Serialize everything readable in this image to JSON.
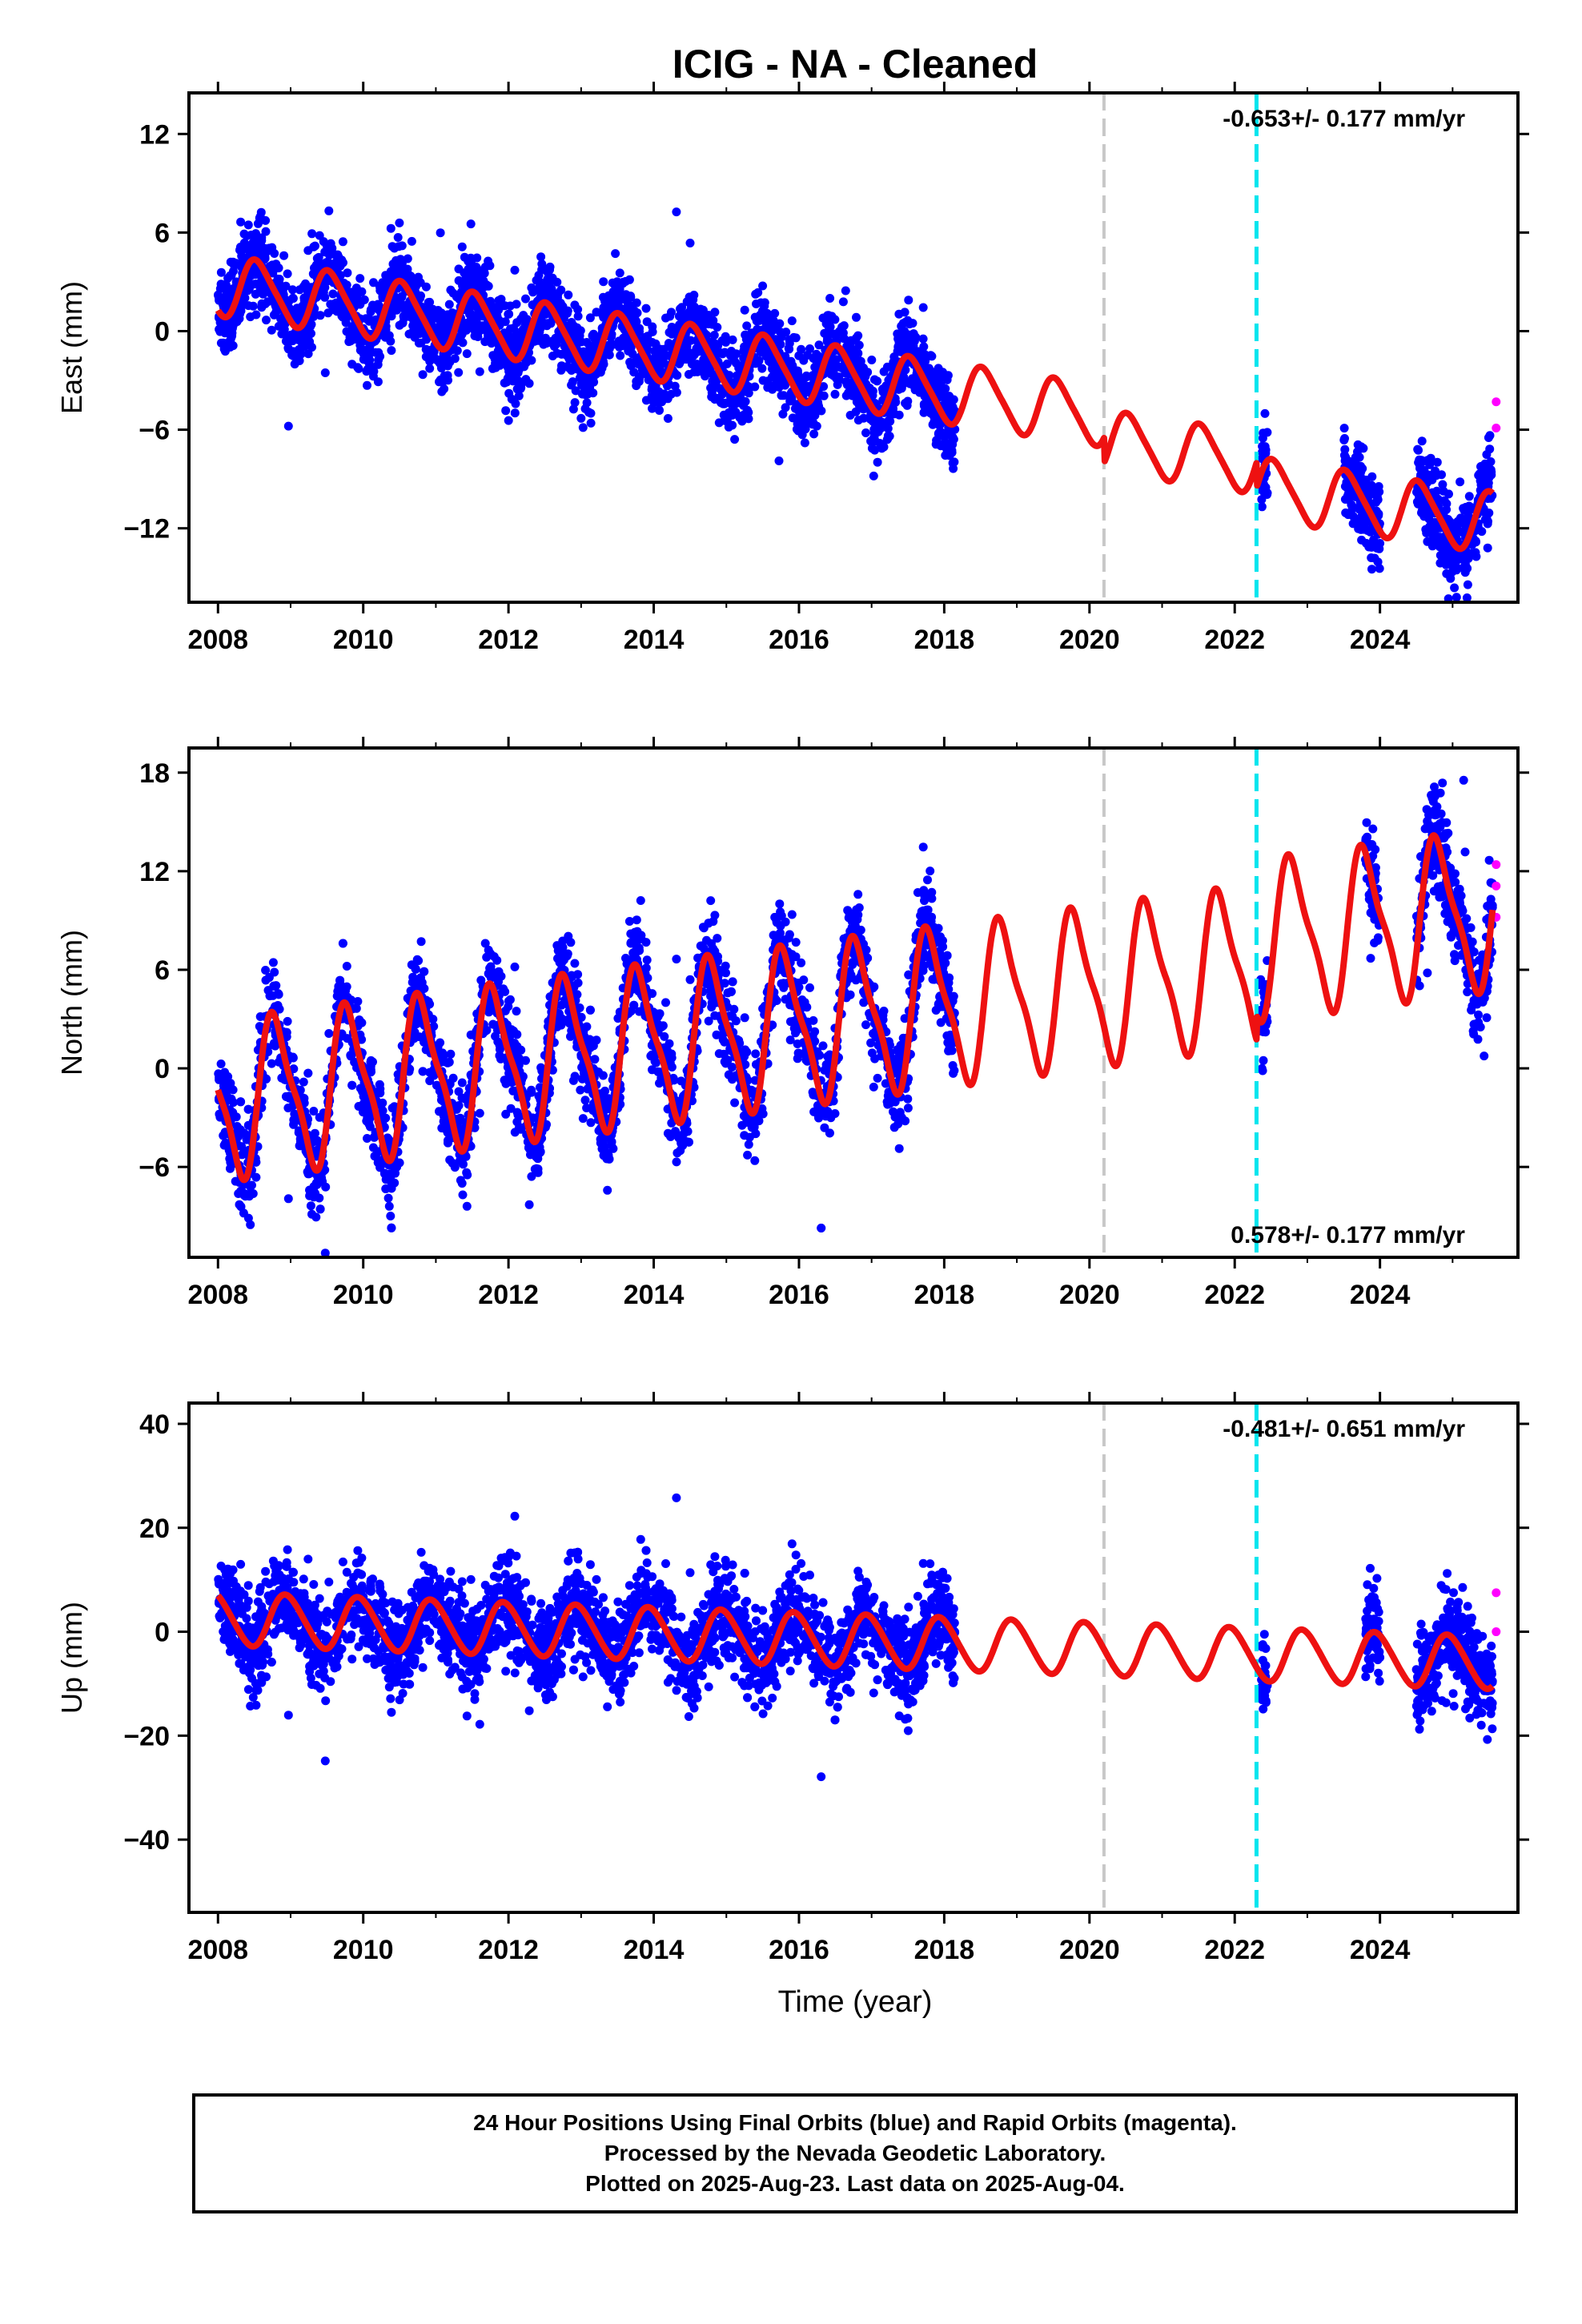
{
  "title": "ICIG  - NA - Cleaned",
  "xlabel": "Time (year)",
  "footer": {
    "lines": [
      "24 Hour Positions Using Final Orbits (blue) and Rapid Orbits (magenta).",
      "Processed by the Nevada Geodetic Laboratory.",
      "Plotted on 2025-Aug-23. Last data on 2025-Aug-04."
    ]
  },
  "colors": {
    "final_orbits": "#0000ff",
    "rapid_orbits": "#ff00ff",
    "model": "#ee1111",
    "event_gray": "#c8c8c8",
    "event_cyan": "#00e5ee"
  },
  "chart_data": [
    {
      "type": "scatter",
      "name": "east",
      "ylabel": "East (mm)",
      "rate_label": "-0.653+/- 0.177 mm/yr",
      "rate_position": "top-right",
      "xlim": [
        2007.6,
        2025.9
      ],
      "ylim": [
        -16.5,
        14.5
      ],
      "xticks": [
        2008,
        2010,
        2012,
        2014,
        2016,
        2018,
        2020,
        2022,
        2024
      ],
      "yticks": [
        12,
        6,
        0,
        -6,
        -12
      ],
      "ytick_labels": [
        "12",
        "6",
        "0",
        "−6",
        "−12"
      ],
      "event_lines": [
        {
          "x": 2020.2,
          "style": "gray-dashed"
        },
        {
          "x": 2022.3,
          "style": "cyan-dashed"
        }
      ],
      "model": {
        "rate": -0.653,
        "offset": 2.8,
        "annual_amp": 1.8,
        "phase": 0.3,
        "semiannual_amp": 0.3,
        "steps": [
          {
            "x": 2020.2,
            "dy": -1.5
          },
          {
            "x": 2022.3,
            "dy": -1.5
          }
        ],
        "x0": 2008.0,
        "y0_ref": 2008.0
      },
      "final_data": {
        "segments": [
          [
            2008.0,
            2018.15
          ],
          [
            2022.35,
            2022.45
          ],
          [
            2023.5,
            2024.0
          ],
          [
            2024.5,
            2025.55
          ]
        ],
        "noise": 1.3
      },
      "rapid_points": [
        [
          2025.6,
          -4.3
        ],
        [
          2025.6,
          -5.9
        ]
      ]
    },
    {
      "type": "scatter",
      "name": "north",
      "ylabel": "North (mm)",
      "rate_label": "0.578+/- 0.177 mm/yr",
      "rate_position": "bottom-right",
      "xlim": [
        2007.6,
        2025.9
      ],
      "ylim": [
        -11.5,
        19.5
      ],
      "xticks": [
        2008,
        2010,
        2012,
        2014,
        2016,
        2018,
        2020,
        2022,
        2024
      ],
      "yticks": [
        18,
        12,
        6,
        0,
        -6
      ],
      "ytick_labels": [
        "18",
        "12",
        "6",
        "0",
        "−6"
      ],
      "event_lines": [
        {
          "x": 2020.2,
          "style": "gray-dashed"
        },
        {
          "x": 2022.3,
          "style": "cyan-dashed"
        }
      ],
      "model": {
        "rate": 0.578,
        "offset": -2.0,
        "annual_amp": 4.5,
        "phase": 0.55,
        "semiannual_amp": 1.2,
        "steps": [
          {
            "x": 2022.3,
            "dy": 1.5
          }
        ],
        "x0": 2008.0,
        "y0_ref": 2008.0
      },
      "final_data": {
        "segments": [
          [
            2008.0,
            2018.15
          ],
          [
            2022.35,
            2022.45
          ],
          [
            2023.8,
            2024.0
          ],
          [
            2024.5,
            2025.55
          ]
        ],
        "noise": 1.5
      },
      "rapid_points": [
        [
          2025.6,
          12.4
        ],
        [
          2025.6,
          11.1
        ],
        [
          2025.6,
          9.2
        ]
      ]
    },
    {
      "type": "scatter",
      "name": "up",
      "ylabel": "Up (mm)",
      "rate_label": "-0.481+/- 0.651 mm/yr",
      "rate_position": "top-right",
      "xlim": [
        2007.6,
        2025.9
      ],
      "ylim": [
        -54,
        44
      ],
      "xticks": [
        2008,
        2010,
        2012,
        2014,
        2016,
        2018,
        2020,
        2022,
        2024
      ],
      "yticks": [
        40,
        20,
        0,
        -20,
        -40
      ],
      "ytick_labels": [
        "40",
        "20",
        "0",
        "−20",
        "−40"
      ],
      "event_lines": [
        {
          "x": 2020.2,
          "style": "gray-dashed"
        },
        {
          "x": 2022.3,
          "style": "cyan-dashed"
        }
      ],
      "model": {
        "rate": -0.481,
        "offset": 2.5,
        "annual_amp": 5.0,
        "phase": 0.7,
        "semiannual_amp": 0.5,
        "steps": [],
        "x0": 2008.0,
        "y0_ref": 2008.0
      },
      "final_data": {
        "segments": [
          [
            2008.0,
            2018.15
          ],
          [
            2022.35,
            2022.45
          ],
          [
            2023.8,
            2024.0
          ],
          [
            2024.5,
            2025.55
          ]
        ],
        "noise": 4.5
      },
      "rapid_points": [
        [
          2025.6,
          7.5
        ],
        [
          2025.6,
          0.0
        ]
      ]
    }
  ]
}
